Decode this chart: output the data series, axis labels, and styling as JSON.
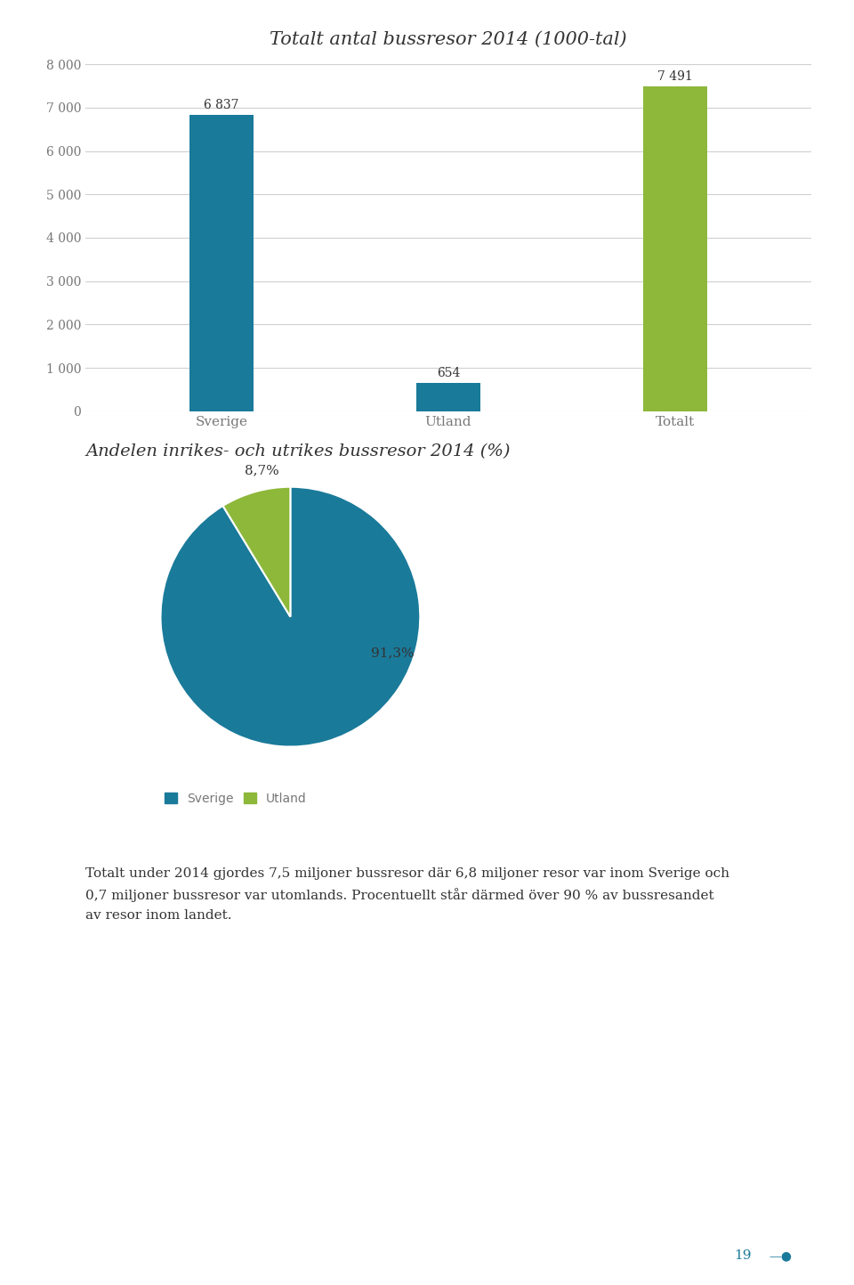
{
  "bar_title": "Totalt antal bussresor 2014 (1000-tal)",
  "bar_categories": [
    "Sverige",
    "Utland",
    "Totalt"
  ],
  "bar_values": [
    6837,
    654,
    7491
  ],
  "bar_colors": [
    "#1a7a9a",
    "#1a7a9a",
    "#8db83a"
  ],
  "bar_ylim": [
    0,
    8000
  ],
  "bar_yticks": [
    0,
    1000,
    2000,
    3000,
    4000,
    5000,
    6000,
    7000,
    8000
  ],
  "bar_ytick_labels": [
    "0",
    "1 000",
    "2 000",
    "3 000",
    "4 000",
    "5 000",
    "6 000",
    "7 000",
    "8 000"
  ],
  "pie_title": "Andelen inrikes- och utrikes bussresor 2014 (%)",
  "pie_values": [
    91.3,
    8.7
  ],
  "pie_labels": [
    "91,3%",
    "8,7%"
  ],
  "pie_colors": [
    "#1a7a9a",
    "#8db83a"
  ],
  "pie_legend_labels": [
    "Sverige",
    "Utland"
  ],
  "body_text": "Totalt under 2014 gjordes 7,5 miljoner bussresor där 6,8 miljoner resor var inom Sverige och\n0,7 miljoner bussresor var utomlands. Procentuellt står därmed över 90 % av bussresandet\nav resor inom landet.",
  "page_number": "19",
  "background_color": "#ffffff",
  "title_color": "#333333",
  "text_color": "#777777",
  "grid_color": "#d0d0d0"
}
